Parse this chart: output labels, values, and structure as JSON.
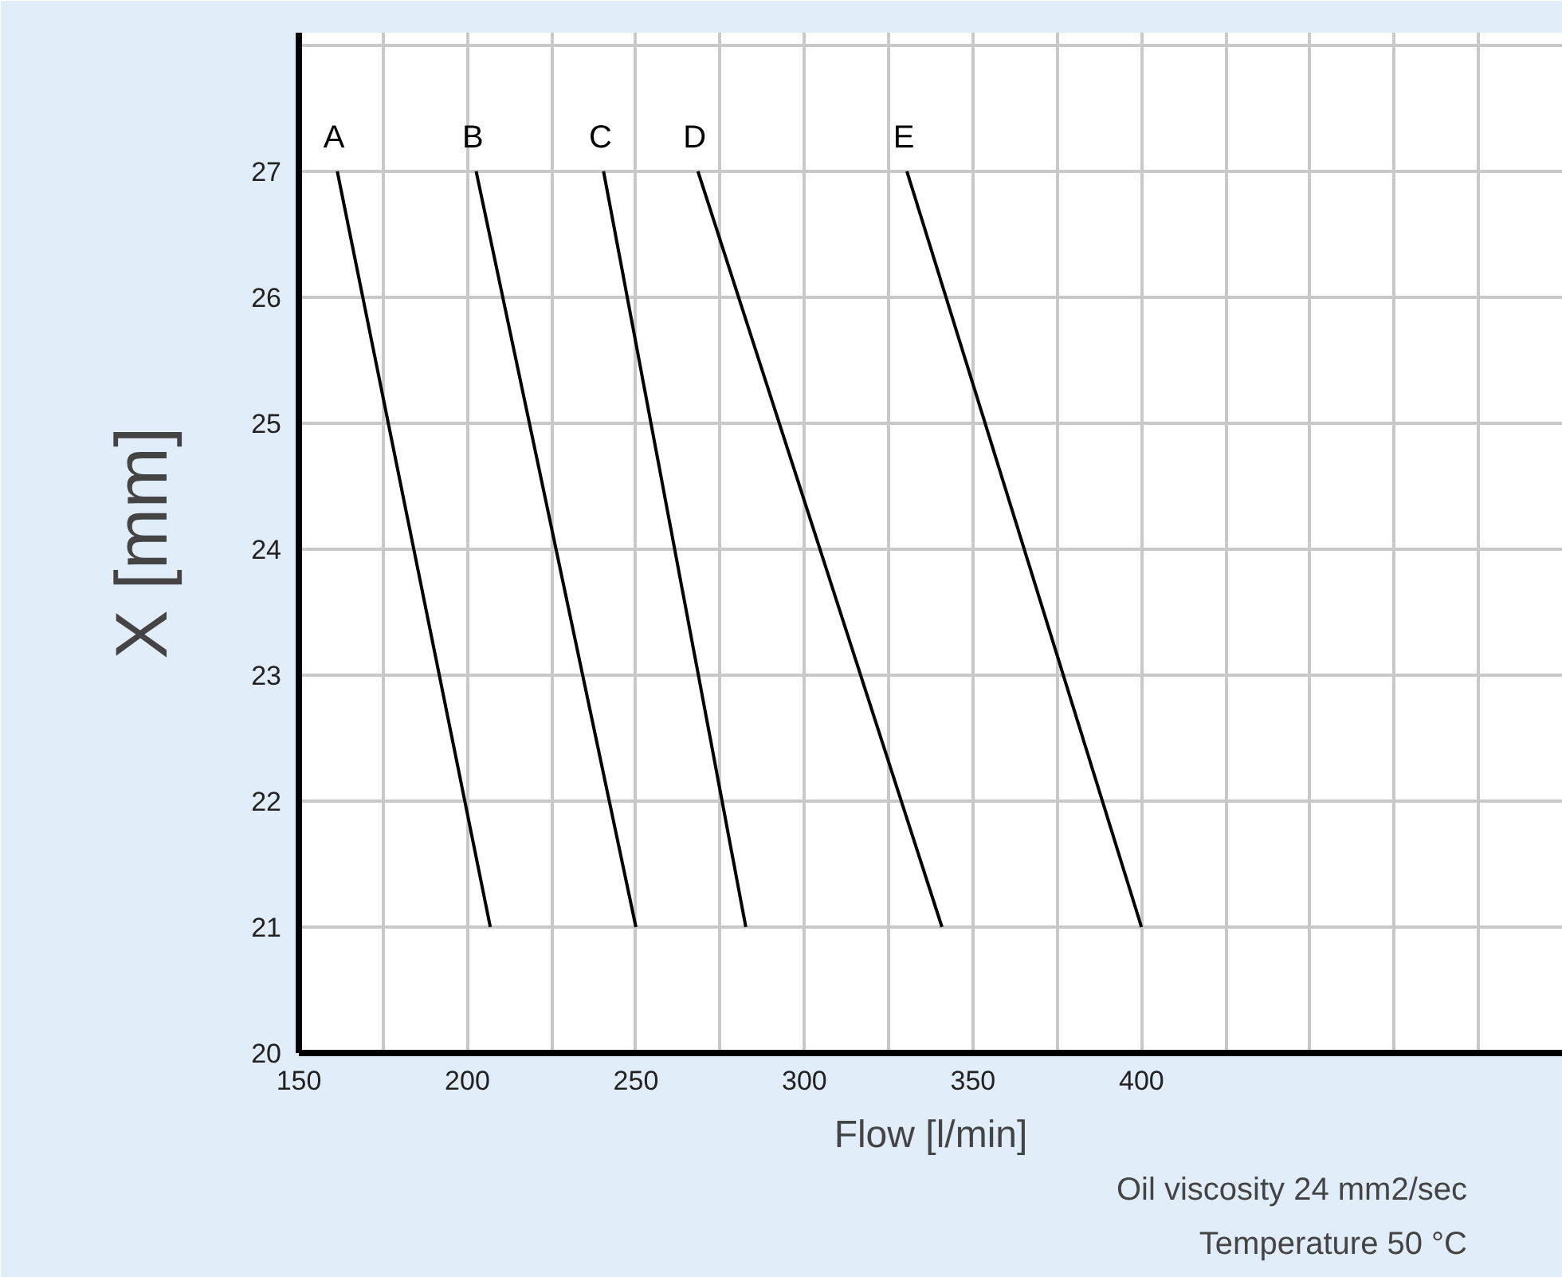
{
  "chart_data": {
    "type": "line",
    "xlabel": "Flow [l/min]",
    "ylabel": "X [mm]",
    "series": [
      {
        "name": "A",
        "color": "#000000",
        "x": [
          161.4,
          206.8
        ],
        "values": [
          27,
          21
        ]
      },
      {
        "name": "B",
        "color": "#000000",
        "x": [
          202.6,
          250
        ],
        "values": [
          27,
          21
        ]
      },
      {
        "name": "C",
        "color": "#000000",
        "x": [
          240.4,
          282.6
        ],
        "values": [
          27,
          21
        ]
      },
      {
        "name": "D",
        "color": "#000000",
        "x": [
          268.4,
          340.8
        ],
        "values": [
          27,
          21
        ]
      },
      {
        "name": "E",
        "color": "#000000",
        "x": [
          330.4,
          400
        ],
        "values": [
          27,
          21
        ]
      }
    ],
    "xlim": [
      150,
      525
    ],
    "xticks": [
      150,
      {
        "value": 175,
        "label": null
      },
      200,
      {
        "value": 225,
        "label": null
      },
      250,
      {
        "value": 275,
        "label": null
      },
      300,
      {
        "value": 325,
        "label": null
      },
      350,
      {
        "value": 375,
        "label": null
      },
      400,
      {
        "value": 425,
        "label": null
      },
      {
        "value": 450,
        "label": null
      },
      {
        "value": 475,
        "label": null
      },
      {
        "value": 500,
        "label": null
      },
      {
        "value": 525,
        "label": null
      }
    ],
    "ylim": [
      20,
      28.1
    ],
    "yticks": [
      20,
      21,
      22,
      23,
      24,
      25,
      26,
      27,
      {
        "value": 28,
        "label": null
      }
    ],
    "grid": true,
    "marker": "none",
    "line_style": "solid",
    "annotations": [
      "Oil viscosity 24 mm2/sec",
      "Temperature 50 °C"
    ]
  }
}
